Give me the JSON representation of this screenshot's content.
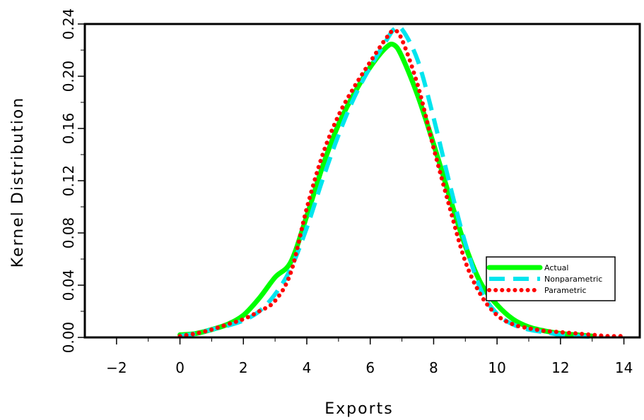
{
  "chart_data": {
    "type": "line",
    "title": "",
    "xlabel": "Exports",
    "ylabel": "Kernel Distribution",
    "xlim": [
      -3,
      14.5
    ],
    "ylim": [
      0,
      0.24
    ],
    "x_ticks": [
      -2,
      0,
      2,
      4,
      6,
      8,
      10,
      12,
      14
    ],
    "x_tick_labels": [
      "−2",
      "0",
      "2",
      "4",
      "6",
      "8",
      "10",
      "12",
      "14"
    ],
    "y_ticks": [
      0,
      0.04,
      0.08,
      0.12,
      0.16,
      0.2,
      0.24
    ],
    "y_tick_labels": [
      "0.00",
      "0.04",
      "0.08",
      "0.12",
      "0.16",
      "0.20",
      "0.24"
    ],
    "grid": false,
    "legend_position": "right",
    "series": [
      {
        "name": "Actual",
        "color": "#00ff00",
        "style": "solid",
        "x": [
          0,
          0.5,
          1,
          1.5,
          2,
          2.5,
          3,
          3.5,
          4,
          4.5,
          5,
          5.5,
          6,
          6.5,
          6.75,
          7,
          7.5,
          8,
          8.5,
          9,
          9.5,
          10,
          10.5,
          11,
          11.5,
          12,
          12.5,
          13
        ],
        "y": [
          0.002,
          0.003,
          0.006,
          0.01,
          0.017,
          0.03,
          0.046,
          0.058,
          0.093,
          0.131,
          0.163,
          0.187,
          0.207,
          0.222,
          0.224,
          0.215,
          0.185,
          0.148,
          0.108,
          0.07,
          0.041,
          0.025,
          0.014,
          0.008,
          0.005,
          0.003,
          0.002,
          0.001
        ]
      },
      {
        "name": "Nonparametric",
        "color": "#00e5ee",
        "style": "dashed",
        "x": [
          0,
          0.5,
          1,
          1.5,
          2,
          2.5,
          3,
          3.5,
          4,
          4.5,
          5,
          5.5,
          6,
          6.5,
          6.75,
          7,
          7.5,
          8,
          8.5,
          9,
          9.5,
          10,
          10.5,
          11,
          11.5,
          12,
          12.5,
          13
        ],
        "y": [
          0.001,
          0.003,
          0.006,
          0.009,
          0.013,
          0.02,
          0.033,
          0.053,
          0.084,
          0.121,
          0.155,
          0.184,
          0.207,
          0.227,
          0.236,
          0.236,
          0.212,
          0.168,
          0.118,
          0.072,
          0.036,
          0.018,
          0.01,
          0.006,
          0.004,
          0.002,
          0.001,
          0.0005
        ]
      },
      {
        "name": "Parametric",
        "color": "#ff0000",
        "style": "dotted",
        "x": [
          0,
          0.5,
          1,
          1.5,
          2,
          2.5,
          3,
          3.5,
          4,
          4.5,
          5,
          5.5,
          6,
          6.5,
          6.75,
          7,
          7.5,
          8,
          8.5,
          9,
          9.5,
          10,
          10.5,
          11,
          11.5,
          12,
          12.5,
          13,
          13.5,
          14
        ],
        "y": [
          0.001,
          0.003,
          0.006,
          0.01,
          0.014,
          0.02,
          0.028,
          0.05,
          0.099,
          0.14,
          0.17,
          0.192,
          0.211,
          0.229,
          0.235,
          0.228,
          0.193,
          0.145,
          0.1,
          0.058,
          0.032,
          0.017,
          0.01,
          0.007,
          0.005,
          0.004,
          0.003,
          0.002,
          0.001,
          0.001
        ]
      }
    ]
  }
}
